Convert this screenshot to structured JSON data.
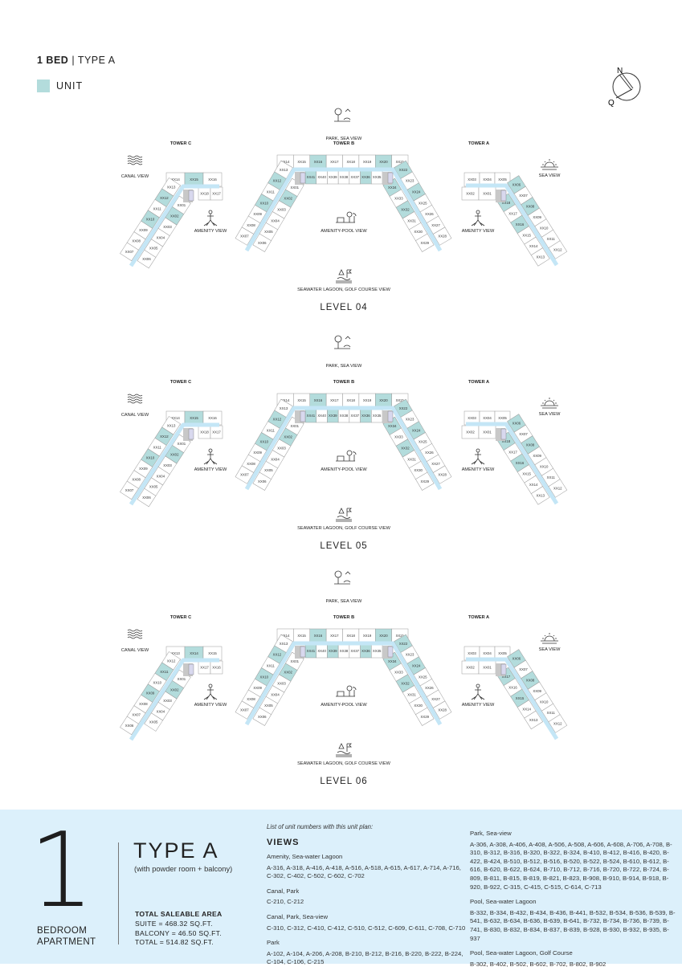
{
  "header": {
    "title_bold": "1 BED",
    "title_sep": "|",
    "title_rest": "TYPE A",
    "legend_label": "UNIT"
  },
  "compass": {
    "north": "N",
    "other": "Q"
  },
  "colors": {
    "unit_highlight": "#b3dcdc",
    "corridor": "#c4e6f6",
    "panel_bg": "#dcf0fb",
    "core": "#c8c8c8",
    "lift": "#d8d8ee"
  },
  "views": {
    "park_sea": "PARK, SEA VIEW",
    "canal": "CANAL VIEW",
    "amenity": "AMENITY VIEW",
    "amenity_pool": "AMENITY-POOL VIEW",
    "lagoon_golf": "SEAWATER LAGOON, GOLF COURSE VIEW",
    "sea": "SEA VIEW"
  },
  "levels": [
    {
      "title": "LEVEL 04",
      "towers": {
        "C": {
          "label": "TOWER C",
          "top_row": [
            "XX14",
            "XX15",
            "XX16"
          ],
          "second_row": [
            "XX18",
            "XX17"
          ],
          "outer": [
            "XX13",
            "XX12",
            "XX11",
            "XX10",
            "XX09",
            "XX08",
            "XX07"
          ],
          "inner": [
            "XX01",
            "XX02",
            "XX03",
            "XX04",
            "XX05",
            "XX06"
          ],
          "highlighted": [
            "XX15",
            "XX12",
            "XX10",
            "XX02"
          ]
        },
        "B": {
          "label": "TOWER B",
          "top_row": [
            "XX14",
            "XX15",
            "XX16",
            "XX17",
            "XX18",
            "XX19",
            "XX20",
            "XX21"
          ],
          "second_row": [
            "XX41",
            "XX40",
            "XX39",
            "XX38",
            "XX37",
            "XX36",
            "XX35"
          ],
          "left_outer": [
            "XX13",
            "XX12",
            "XX11",
            "XX10",
            "XX09",
            "XX08",
            "XX07"
          ],
          "left_inner": [
            "XX01",
            "XX02",
            "XX03",
            "XX04",
            "XX05",
            "XX06"
          ],
          "right_outer": [
            "XX22",
            "XX23",
            "XX24",
            "XX25",
            "XX26",
            "XX27",
            "XX28"
          ],
          "right_inner": [
            "XX34",
            "XX33",
            "XX32",
            "XX31",
            "XX30",
            "XX29"
          ],
          "highlighted": [
            "XX16",
            "XX20",
            "XX41",
            "XX36",
            "XX12",
            "XX10",
            "XX02",
            "XX22",
            "XX24",
            "XX34",
            "XX32"
          ]
        },
        "A": {
          "label": "TOWER A",
          "top_row": [
            "XX03",
            "XX04",
            "XX05"
          ],
          "second_row": [
            "XX02",
            "XX01"
          ],
          "outer": [
            "XX06",
            "XX07",
            "XX08",
            "XX09",
            "XX10",
            "XX11",
            "XX12"
          ],
          "inner": [
            "XX18",
            "XX17",
            "XX16",
            "XX15",
            "XX14",
            "XX13"
          ],
          "highlighted": [
            "XX06",
            "XX08",
            "XX18",
            "XX16"
          ]
        }
      }
    },
    {
      "title": "LEVEL 05",
      "towers": {
        "C": {
          "label": "TOWER C",
          "top_row": [
            "XX14",
            "XX15",
            "XX16"
          ],
          "second_row": [
            "XX18",
            "XX17"
          ],
          "outer": [
            "XX13",
            "XX12",
            "XX11",
            "XX10",
            "XX09",
            "XX08",
            "XX07"
          ],
          "inner": [
            "XX01",
            "XX02",
            "XX03",
            "XX04",
            "XX05",
            "XX06"
          ],
          "highlighted": [
            "XX15",
            "XX12",
            "XX10",
            "XX02"
          ]
        },
        "B": {
          "label": "TOWER B",
          "top_row": [
            "XX14",
            "XX15",
            "XX16",
            "XX17",
            "XX18",
            "XX19",
            "XX20",
            "XX21"
          ],
          "second_row": [
            "XX41",
            "XX40",
            "XX39",
            "XX38",
            "XX37",
            "XX36",
            "XX35"
          ],
          "left_outer": [
            "XX13",
            "XX12",
            "XX11",
            "XX10",
            "XX09",
            "XX08",
            "XX07"
          ],
          "left_inner": [
            "XX01",
            "XX02",
            "XX03",
            "XX04",
            "XX05",
            "XX06"
          ],
          "right_outer": [
            "XX22",
            "XX23",
            "XX24",
            "XX25",
            "XX26",
            "XX27",
            "XX28"
          ],
          "right_inner": [
            "XX34",
            "XX33",
            "XX32",
            "XX31",
            "XX30",
            "XX29"
          ],
          "highlighted": [
            "XX16",
            "XX20",
            "XX41",
            "XX39",
            "XX36",
            "XX12",
            "XX10",
            "XX02",
            "XX22",
            "XX24",
            "XX34",
            "XX32"
          ]
        },
        "A": {
          "label": "TOWER A",
          "top_row": [
            "XX03",
            "XX04",
            "XX05"
          ],
          "second_row": [
            "XX02",
            "XX01"
          ],
          "outer": [
            "XX06",
            "XX07",
            "XX08",
            "XX09",
            "XX10",
            "XX11",
            "XX12"
          ],
          "inner": [
            "XX18",
            "XX17",
            "XX16",
            "XX15",
            "XX14",
            "XX13"
          ],
          "highlighted": [
            "XX06",
            "XX08",
            "XX18",
            "XX16"
          ]
        }
      }
    },
    {
      "title": "LEVEL 06",
      "towers": {
        "C": {
          "label": "TOWER C",
          "top_row": [
            "XX13",
            "XX14",
            "XX15"
          ],
          "second_row": [
            "XX17",
            "XX16"
          ],
          "outer": [
            "XX12",
            "XX11",
            "XX10",
            "XX09",
            "XX08",
            "XX07",
            "XX06"
          ],
          "inner": [
            "XX01",
            "XX02",
            "XX03",
            "XX04",
            "XX05"
          ],
          "highlighted": [
            "XX14",
            "XX11",
            "XX09",
            "XX02"
          ]
        },
        "B": {
          "label": "TOWER B",
          "top_row": [
            "XX14",
            "XX15",
            "XX16",
            "XX17",
            "XX18",
            "XX19",
            "XX20",
            "XX21"
          ],
          "second_row": [
            "XX41",
            "XX40",
            "XX39",
            "XX38",
            "XX37",
            "XX36",
            "XX35"
          ],
          "left_outer": [
            "XX13",
            "XX12",
            "XX11",
            "XX10",
            "XX09",
            "XX08",
            "XX07"
          ],
          "left_inner": [
            "XX01",
            "XX02",
            "XX03",
            "XX04",
            "XX05",
            "XX06"
          ],
          "right_outer": [
            "XX22",
            "XX23",
            "XX24",
            "XX25",
            "XX26",
            "XX27",
            "XX28"
          ],
          "right_inner": [
            "XX34",
            "XX33",
            "XX32",
            "XX31",
            "XX30",
            "XX29"
          ],
          "highlighted": [
            "XX16",
            "XX20",
            "XX41",
            "XX39",
            "XX36",
            "XX12",
            "XX10",
            "XX02",
            "XX22",
            "XX24",
            "XX34",
            "XX32"
          ]
        },
        "A": {
          "label": "TOWER A",
          "top_row": [
            "XX03",
            "XX04",
            "XX05"
          ],
          "second_row": [
            "XX02",
            "XX01"
          ],
          "outer": [
            "XX06",
            "XX07",
            "XX08",
            "XX09",
            "XX10",
            "XX11",
            "XX12"
          ],
          "inner": [
            "XX17",
            "XX16",
            "XX15",
            "XX14",
            "XX13"
          ],
          "highlighted": [
            "XX06",
            "XX08",
            "XX17",
            "XX15"
          ]
        }
      }
    }
  ],
  "summary": {
    "bedrooms": "1",
    "bedroom_line1": "BEDROOM",
    "bedroom_line2": "APARTMENT",
    "type": "TYPE A",
    "type_note": "(with powder room + balcony)",
    "area_heading": "TOTAL SALEABLE AREA",
    "suite": "SUITE = 468.32 SQ.FT.",
    "balcony": "BALCONY = 46.50 SQ.FT.",
    "total": "TOTAL = 514.82 SQ.FT."
  },
  "unit_list": {
    "note": "List of unit numbers with this unit plan:",
    "heading": "VIEWS",
    "groups": [
      {
        "label": "Amenity, Sea-water Lagoon",
        "units": "A-316, A-318, A-416, A-418, A-516, A-518, A-615, A-617, A-714, A-716, C-302, C-402, C-502, C-602, C-702"
      },
      {
        "label": "Canal, Park",
        "units": "C-210, C-212"
      },
      {
        "label": "Canal, Park, Sea-view",
        "units": "C-310, C-312, C-410, C-412, C-510, C-512, C-609, C-611, C-708, C-710"
      },
      {
        "label": "Park",
        "units": "A-102, A-104, A-206, A-208, B-210, B-212, B-216, B-220, B-222, B-224, C-104, C-106, C-215"
      },
      {
        "label": "Park, Sea-view",
        "units": "A-306, A-308, A-406, A-408, A-506, A-508, A-606, A-608, A-706, A-708, B-310, B-312, B-316, B-320, B-322, B-324, B-410, B-412, B-416, B-420, B-422, B-424, B-510, B-512, B-516, B-520, B-522, B-524, B-610, B-612, B-616, B-620, B-622, B-624, B-710, B-712, B-716, B-720, B-722, B-724, B-809, B-811, B-815, B-819, B-821, B-823, B-908, B-910, B-914, B-918, B-920, B-922, C-315, C-415, C-515, C-614, C-713"
      },
      {
        "label": "Pool, Sea-water Lagoon",
        "units": "B-332, B-334, B-432, B-434, B-436, B-441, B-532, B-534, B-536, B-539, B-541, B-632, B-634, B-636, B-639, B-641, B-732, B-734, B-736, B-739, B-741, B-830, B-832, B-834, B-837, B-839, B-928, B-930, B-932, B-935, B-937"
      },
      {
        "label": "Pool, Sea-water Lagoon, Golf Course",
        "units": "B-302, B-402, B-502, B-602, B-702, B-802, B-902"
      }
    ]
  }
}
